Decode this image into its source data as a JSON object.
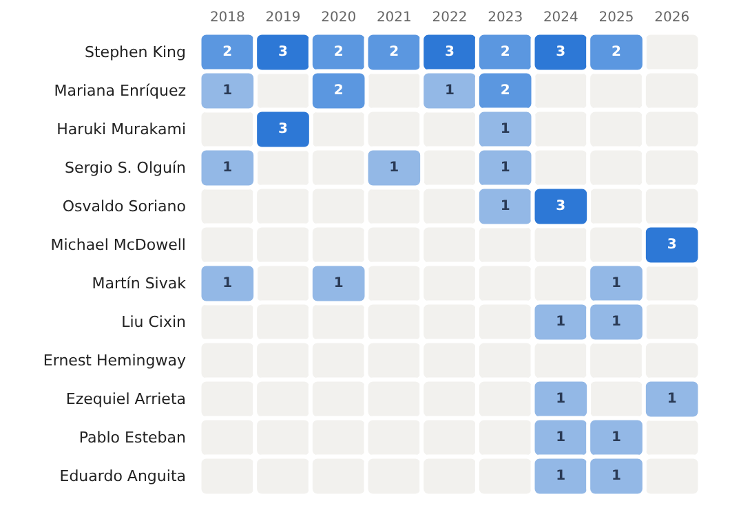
{
  "chart_data": {
    "type": "heatmap",
    "categories": [
      "2018",
      "2019",
      "2020",
      "2021",
      "2022",
      "2023",
      "2024",
      "2025",
      "2026"
    ],
    "y_categories": [
      "Stephen King",
      "Mariana Enríquez",
      "Haruki Murakami",
      "Sergio S. Olguín",
      "Osvaldo Soriano",
      "Michael McDowell",
      "Martín Sivak",
      "Liu Cixin",
      "Ernest Hemingway",
      "Ezequiel Arrieta",
      "Pablo Esteban",
      "Eduardo Anguita"
    ],
    "cells": [
      [
        2,
        3,
        2,
        2,
        3,
        2,
        3,
        2,
        null
      ],
      [
        1,
        null,
        2,
        null,
        1,
        2,
        null,
        null,
        null
      ],
      [
        null,
        3,
        null,
        null,
        null,
        1,
        null,
        null,
        null
      ],
      [
        1,
        null,
        null,
        1,
        null,
        1,
        null,
        null,
        null
      ],
      [
        null,
        null,
        null,
        null,
        null,
        1,
        3,
        null,
        null
      ],
      [
        null,
        null,
        null,
        null,
        null,
        null,
        null,
        null,
        3
      ],
      [
        1,
        null,
        1,
        null,
        null,
        null,
        null,
        1,
        null
      ],
      [
        null,
        null,
        null,
        null,
        null,
        null,
        1,
        1,
        null
      ],
      [
        null,
        null,
        null,
        null,
        null,
        null,
        null,
        null,
        null
      ],
      [
        null,
        null,
        null,
        null,
        null,
        null,
        1,
        null,
        1
      ],
      [
        null,
        null,
        null,
        null,
        null,
        null,
        1,
        1,
        null
      ],
      [
        null,
        null,
        null,
        null,
        null,
        null,
        1,
        1,
        null
      ]
    ],
    "colors": [
      "#93b8e6",
      "#5b97e0",
      "#2d78d6"
    ],
    "data_labels": true
  }
}
